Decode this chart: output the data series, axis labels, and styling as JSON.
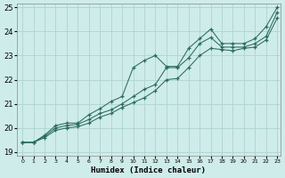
{
  "xlabel": "Humidex (Indice chaleur)",
  "ylabel": "",
  "xlim": [
    -0.5,
    23.3
  ],
  "ylim": [
    18.85,
    25.15
  ],
  "yticks": [
    19,
    20,
    21,
    22,
    23,
    24,
    25
  ],
  "xticks": [
    0,
    1,
    2,
    3,
    4,
    5,
    6,
    7,
    8,
    9,
    10,
    11,
    12,
    13,
    14,
    15,
    16,
    17,
    18,
    19,
    20,
    21,
    22,
    23
  ],
  "bg_color": "#ceecea",
  "grid_color": "#aed4d0",
  "line_color": "#2a6b5e",
  "line1_x": [
    0,
    1,
    2,
    3,
    4,
    5,
    6,
    7,
    8,
    9,
    10,
    11,
    12,
    13,
    14,
    15,
    16,
    17,
    18,
    19,
    20,
    21,
    22,
    23
  ],
  "line1_y": [
    19.4,
    19.4,
    19.7,
    20.1,
    20.2,
    20.2,
    20.55,
    20.8,
    21.1,
    21.3,
    22.5,
    22.8,
    23.0,
    22.55,
    22.55,
    23.3,
    23.7,
    24.1,
    23.5,
    23.5,
    23.5,
    23.7,
    24.2,
    25.0
  ],
  "line2_x": [
    0,
    1,
    2,
    3,
    4,
    5,
    6,
    7,
    8,
    9,
    10,
    11,
    12,
    13,
    14,
    15,
    16,
    17,
    18,
    19,
    20,
    21,
    22,
    23
  ],
  "line2_y": [
    19.4,
    19.4,
    19.65,
    20.0,
    20.1,
    20.15,
    20.35,
    20.6,
    20.75,
    21.0,
    21.3,
    21.6,
    21.8,
    22.5,
    22.5,
    22.9,
    23.5,
    23.75,
    23.35,
    23.35,
    23.35,
    23.5,
    23.8,
    24.8
  ],
  "line3_x": [
    0,
    1,
    2,
    3,
    4,
    5,
    6,
    7,
    8,
    9,
    10,
    11,
    12,
    13,
    14,
    15,
    16,
    17,
    18,
    19,
    20,
    21,
    22,
    23
  ],
  "line3_y": [
    19.4,
    19.4,
    19.6,
    19.9,
    20.0,
    20.05,
    20.2,
    20.45,
    20.6,
    20.85,
    21.05,
    21.25,
    21.55,
    22.0,
    22.05,
    22.5,
    23.0,
    23.3,
    23.25,
    23.2,
    23.3,
    23.35,
    23.65,
    24.55
  ]
}
